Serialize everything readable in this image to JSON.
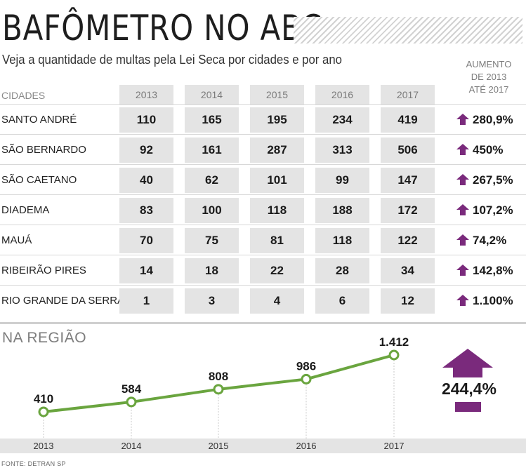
{
  "title": "BAFÔMETRO NO ABC",
  "subtitle": "Veja a quantidade de multas pela Lei Seca por cidades e por ano",
  "increase_header": [
    "AUMENTO",
    "DE 2013",
    "ATÉ 2017"
  ],
  "cities_header": "CIDADES",
  "years": [
    "2013",
    "2014",
    "2015",
    "2016",
    "2017"
  ],
  "rows": [
    {
      "city": "SANTO ANDRÉ",
      "values": [
        "110",
        "165",
        "195",
        "234",
        "419"
      ],
      "increase": "280,9%"
    },
    {
      "city": "SÃO BERNARDO",
      "values": [
        "92",
        "161",
        "287",
        "313",
        "506"
      ],
      "increase": "450%"
    },
    {
      "city": "SÃO CAETANO",
      "values": [
        "40",
        "62",
        "101",
        "99",
        "147"
      ],
      "increase": "267,5%"
    },
    {
      "city": "DIADEMA",
      "values": [
        "83",
        "100",
        "118",
        "188",
        "172"
      ],
      "increase": "107,2%"
    },
    {
      "city": "MAUÁ",
      "values": [
        "70",
        "75",
        "81",
        "118",
        "122"
      ],
      "increase": "74,2%"
    },
    {
      "city": "RIBEIRÃO PIRES",
      "values": [
        "14",
        "18",
        "22",
        "28",
        "34"
      ],
      "increase": "142,8%"
    },
    {
      "city": "RIO GRANDE DA SERRA",
      "values": [
        "1",
        "3",
        "4",
        "6",
        "12"
      ],
      "increase": "1.100%"
    }
  ],
  "region_title": "NA REGIÃO",
  "region_increase": "244,4%",
  "source": "FONTE: DETRAN SP",
  "colors": {
    "accent": "#7a2a7c",
    "line": "#6aa53f",
    "cell": "#e4e4e4"
  },
  "chart_data": {
    "type": "line",
    "x": [
      "2013",
      "2014",
      "2015",
      "2016",
      "2017"
    ],
    "values": [
      410,
      584,
      808,
      986,
      1412
    ],
    "value_labels": [
      "410",
      "584",
      "808",
      "986",
      "1.412"
    ],
    "ylim": [
      0,
      1500
    ],
    "grid": false,
    "legend": "none"
  }
}
